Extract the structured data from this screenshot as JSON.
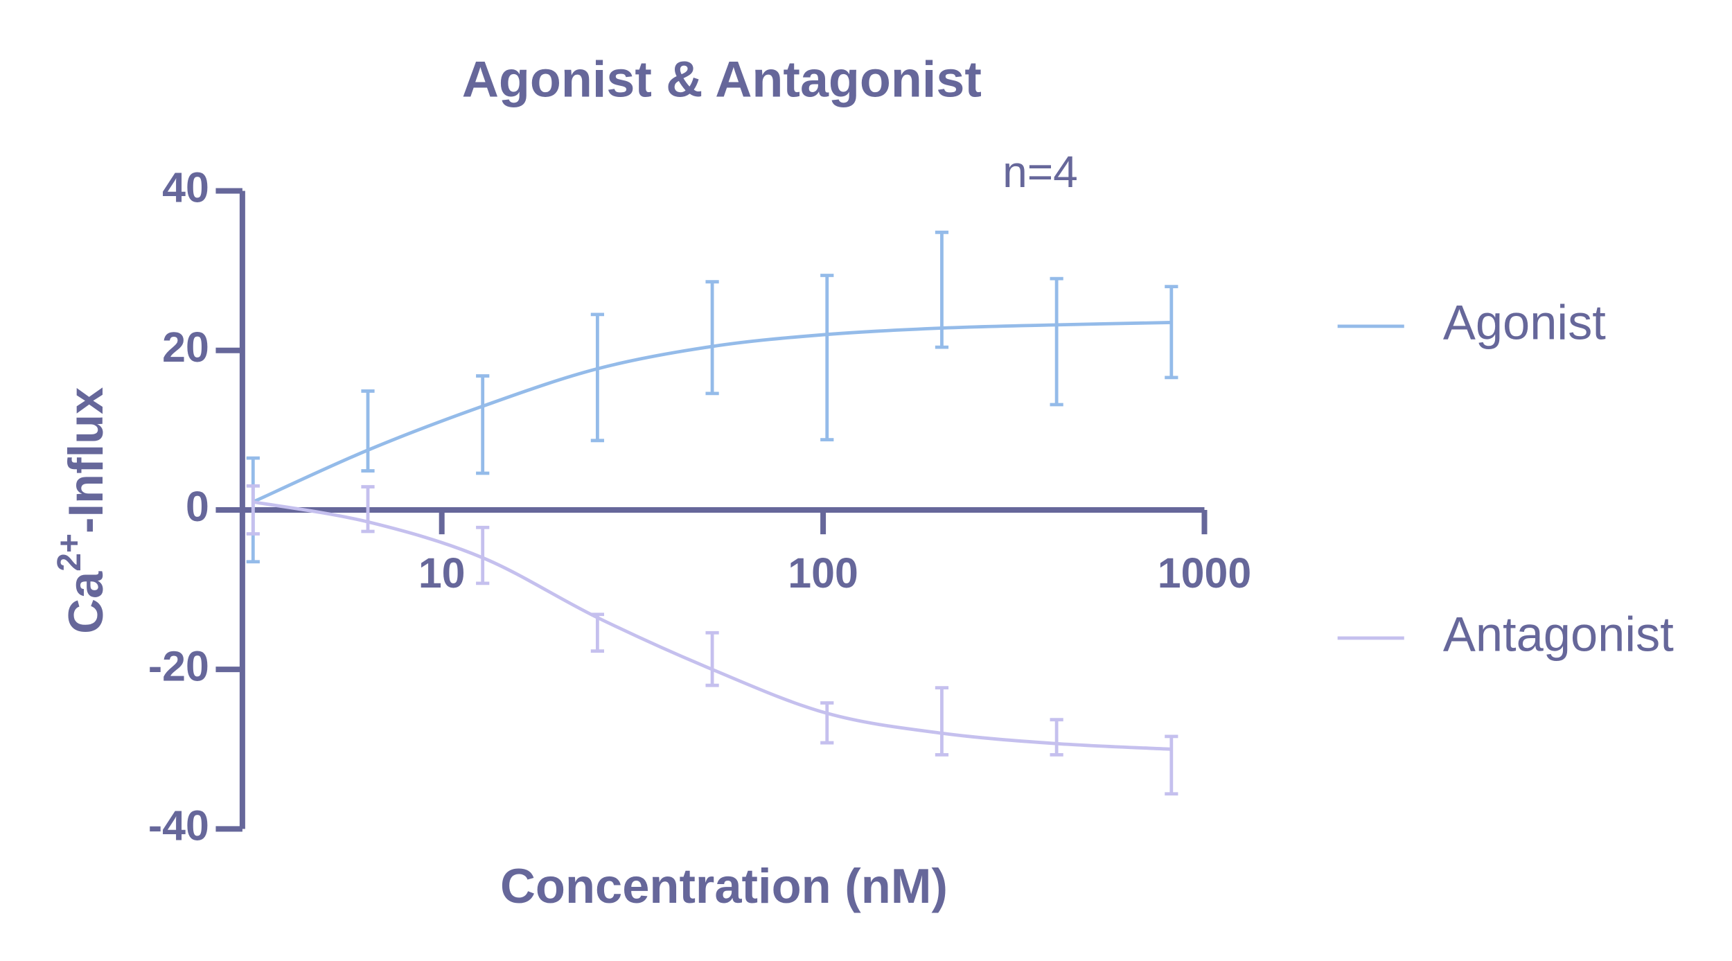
{
  "chart_data": {
    "type": "errorline",
    "title": "Agonist & Antagonist",
    "annotation": "n=4",
    "xlabel": "Concentration (nM)",
    "ylabel": {
      "base": "Ca",
      "sup": "2+",
      "rest": "-Influx"
    },
    "x": [
      3.2,
      6.4,
      12.8,
      25.6,
      51.2,
      102.4,
      204.8,
      409.6,
      819.2
    ],
    "xlim": [
      3,
      1000
    ],
    "xscale": "log",
    "xticks": [
      10,
      100,
      1000
    ],
    "ylim": [
      -40,
      40
    ],
    "yticks": [
      -40,
      -20,
      0,
      20,
      40
    ],
    "legend": "right",
    "series": [
      {
        "name": "Agonist",
        "color": "#94bbe9",
        "values": [
          0,
          9.9,
          10.7,
          16.6,
          21.6,
          19.1,
          27.6,
          21.1,
          22.3
        ],
        "errors": [
          6.5,
          5,
          6.1,
          7.9,
          7,
          10.3,
          7.2,
          7.9,
          5.7
        ],
        "fit": [
          1,
          7.5,
          13,
          17.7,
          20.5,
          22,
          22.8,
          23.2,
          23.5
        ]
      },
      {
        "name": "Antagonist",
        "color": "#c5c0ee",
        "values": [
          0,
          0.1,
          -5.7,
          -15.4,
          -18.7,
          -26.7,
          -26.5,
          -28.5,
          -32
        ],
        "errors": [
          3,
          2.8,
          3.5,
          2.3,
          3.3,
          2.5,
          4.2,
          2.2,
          3.6
        ],
        "fit": [
          1,
          -1.5,
          -6,
          -13.5,
          -20,
          -25.5,
          -28,
          -29.3,
          -30
        ]
      }
    ]
  }
}
